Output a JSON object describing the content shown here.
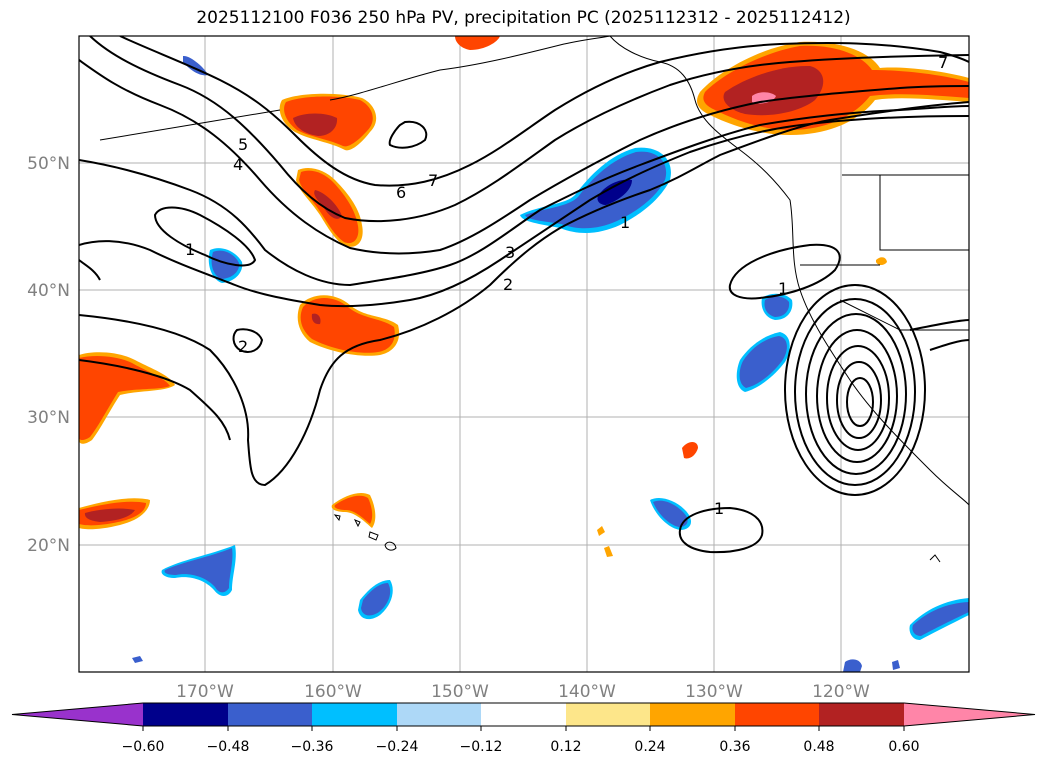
{
  "title": "2025112100 F036 250 hPa PV, precipitation PC (2025112312 - 2025112412)",
  "latitude_labels": [
    "50°N",
    "40°N",
    "30°N",
    "20°N"
  ],
  "longitude_labels": [
    "170°W",
    "160°W",
    "150°W",
    "140°W",
    "130°W",
    "120°W"
  ],
  "pv_contour_labels": [
    "1",
    "2",
    "3",
    "4",
    "5",
    "6",
    "7",
    "1",
    "2",
    "1",
    "1",
    "7"
  ],
  "colorbar": {
    "tick_labels": [
      "−0.60",
      "−0.48",
      "−0.36",
      "−0.24",
      "−0.12",
      "0.12",
      "0.24",
      "0.36",
      "0.48",
      "0.60"
    ],
    "colors": [
      "#9932cc",
      "#00008b",
      "#3a5fcd",
      "#00bfff",
      "#add8f7",
      "#ffffff",
      "#fde68a",
      "#ffa500",
      "#ff4500",
      "#b22222",
      "#ff85a8"
    ]
  },
  "colors": {
    "pos_low": "#fde68a",
    "pos_mid": "#ffa500",
    "pos_high": "#ff4500",
    "pos_very_high": "#b22222",
    "pos_extreme": "#ff85a8",
    "neg_low": "#add8f7",
    "neg_mid": "#00bfff",
    "neg_high": "#3a5fcd",
    "neg_very_high": "#00008b"
  }
}
